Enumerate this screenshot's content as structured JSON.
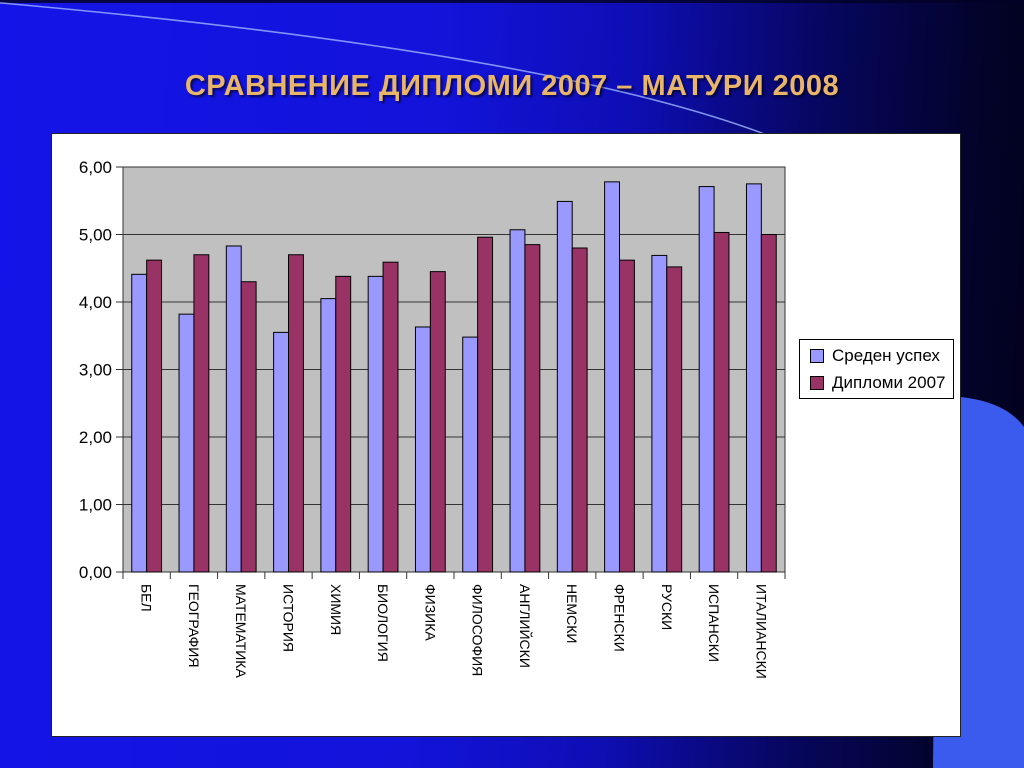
{
  "slide": {
    "title": "СРАВНЕНИЕ ДИПЛОМИ 2007 – МАТУРИ 2008",
    "title_color": "#E9B569",
    "background": {
      "left_color": "#1414E8",
      "right_color": "#02021A",
      "corner_accent_color": "#3B5BEE",
      "arc_line_color": "#9FB4FF"
    }
  },
  "chart_data": {
    "type": "bar",
    "title": "",
    "xlabel": "",
    "ylabel": "",
    "categories": [
      "БЕЛ",
      "ГЕОГРАФИЯ",
      "МАТЕМАТИКА",
      "ИСТОРИЯ",
      "ХИМИЯ",
      "БИОЛОГИЯ",
      "ФИЗИКА",
      "ФИЛОСОФИЯ",
      "АНГЛИЙСКИ",
      "НЕМСКИ",
      "ФРЕНСКИ",
      "РУСКИ",
      "ИСПАНСКИ",
      "ИТАЛИАНСКИ"
    ],
    "series": [
      {
        "name": "Среден успех",
        "color": "#9999FF",
        "values": [
          4.41,
          3.82,
          4.83,
          3.55,
          4.05,
          4.38,
          3.63,
          3.48,
          5.07,
          5.49,
          5.78,
          4.69,
          5.71,
          5.75
        ]
      },
      {
        "name": "Дипломи 2007",
        "color": "#993366",
        "values": [
          4.62,
          4.7,
          4.3,
          4.7,
          4.38,
          4.59,
          4.45,
          4.96,
          4.85,
          4.8,
          4.62,
          4.52,
          5.03,
          5.0
        ]
      }
    ],
    "ylim": [
      0,
      6
    ],
    "ytick_labels": [
      "0,00",
      "1,00",
      "2,00",
      "3,00",
      "4,00",
      "5,00",
      "6,00"
    ],
    "grid": true,
    "legend_position": "right",
    "plot_background": "#C0C0C0",
    "bar_outline": "#000000"
  }
}
